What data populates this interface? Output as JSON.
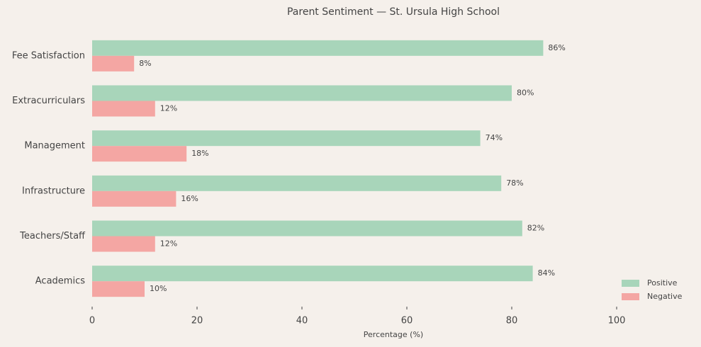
{
  "chart_data": {
    "type": "hbar",
    "title": "Parent Sentiment — St. Ursula High School",
    "xlabel": "Percentage (%)",
    "categories": [
      "Academics",
      "Teachers/Staff",
      "Infrastructure",
      "Management",
      "Extracurriculars",
      "Fee Satisfaction"
    ],
    "series": [
      {
        "name": "Positive",
        "color": "#a8d5ba",
        "values": [
          84,
          82,
          78,
          74,
          80,
          86
        ],
        "value_labels": [
          "84%",
          "82%",
          "78%",
          "74%",
          "80%",
          "86%"
        ]
      },
      {
        "name": "Negative",
        "color": "#f4a6a3",
        "values": [
          10,
          12,
          16,
          18,
          12,
          8
        ],
        "value_labels": [
          "10%",
          "12%",
          "16%",
          "18%",
          "12%",
          "8%"
        ]
      }
    ],
    "xlim": [
      0,
      115
    ],
    "xticks": [
      0,
      20,
      40,
      60,
      80,
      100
    ],
    "legend": "lower right"
  }
}
